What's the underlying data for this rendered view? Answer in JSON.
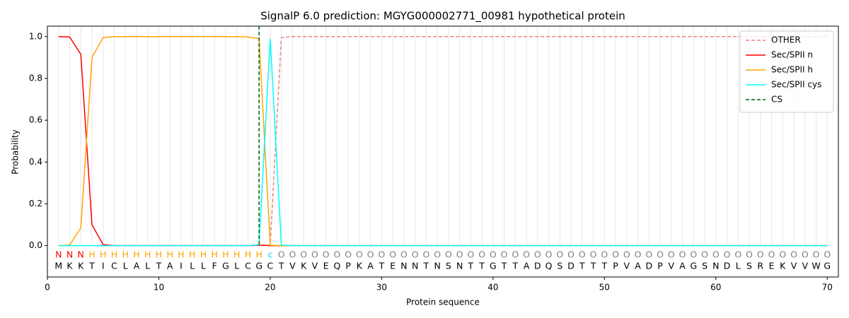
{
  "chart_data": {
    "type": "line",
    "title": "SignalP 6.0 prediction: MGYG000002771_00981 hypothetical protein",
    "x_label": "Protein sequence",
    "y_label": "Probability",
    "xlim": [
      0,
      71
    ],
    "ylim": [
      -0.15,
      1.05
    ],
    "xticks": [
      0,
      10,
      20,
      30,
      40,
      50,
      60,
      70
    ],
    "yticks": [
      {
        "value": 0,
        "label": "0.0"
      },
      {
        "value": 0.2,
        "label": "0.2"
      },
      {
        "value": 0.4,
        "label": "0.4"
      },
      {
        "value": 0.6,
        "label": "0.6"
      },
      {
        "value": 0.8,
        "label": "0.8"
      },
      {
        "value": 1.0,
        "label": "1.0"
      }
    ],
    "legend": "upper right",
    "x": [
      1,
      2,
      3,
      4,
      5,
      6,
      7,
      8,
      9,
      10,
      11,
      12,
      13,
      14,
      15,
      16,
      17,
      18,
      19,
      20,
      21,
      22,
      23,
      24,
      25,
      26,
      27,
      28,
      29,
      30,
      31,
      32,
      33,
      34,
      35,
      36,
      37,
      38,
      39,
      40,
      41,
      42,
      43,
      44,
      45,
      46,
      47,
      48,
      49,
      50,
      51,
      52,
      53,
      54,
      55,
      56,
      57,
      58,
      59,
      60,
      61,
      62,
      63,
      64,
      65,
      66,
      67,
      68,
      69,
      70
    ],
    "sequence": [
      "M",
      "K",
      "K",
      "T",
      "I",
      "C",
      "L",
      "A",
      "L",
      "T",
      "A",
      "I",
      "L",
      "L",
      "F",
      "G",
      "L",
      "C",
      "G",
      "C",
      "T",
      "V",
      "K",
      "V",
      "E",
      "Q",
      "P",
      "K",
      "A",
      "T",
      "E",
      "N",
      "N",
      "T",
      "N",
      "S",
      "N",
      "T",
      "T",
      "G",
      "T",
      "T",
      "A",
      "D",
      "Q",
      "S",
      "D",
      "T",
      "T",
      "T",
      "P",
      "V",
      "A",
      "D",
      "P",
      "V",
      "A",
      "G",
      "S",
      "N",
      "D",
      "L",
      "S",
      "R",
      "E",
      "K",
      "V",
      "V",
      "W",
      "G"
    ],
    "annotation": [
      "N",
      "N",
      "N",
      "H",
      "H",
      "H",
      "H",
      "H",
      "H",
      "H",
      "H",
      "H",
      "H",
      "H",
      "H",
      "H",
      "H",
      "H",
      "H",
      "c",
      "O",
      "O",
      "O",
      "O",
      "O",
      "O",
      "O",
      "O",
      "O",
      "O",
      "O",
      "O",
      "O",
      "O",
      "O",
      "O",
      "O",
      "O",
      "O",
      "O",
      "O",
      "O",
      "O",
      "O",
      "O",
      "O",
      "O",
      "O",
      "O",
      "O",
      "O",
      "O",
      "O",
      "O",
      "O",
      "O",
      "O",
      "O",
      "O",
      "O",
      "O",
      "O",
      "O",
      "O",
      "O",
      "O",
      "O",
      "O",
      "O",
      "O"
    ],
    "annotation_colors": {
      "N": "#ff0000",
      "H": "#ffa500",
      "c": "#00e5ee",
      "O": "#808080"
    },
    "series": [
      {
        "name": "OTHER",
        "color": "#f08080",
        "dash": true,
        "values": [
          0,
          0,
          0,
          0,
          0,
          0,
          0,
          0,
          0,
          0,
          0,
          0,
          0,
          0,
          0,
          0,
          0,
          0,
          0,
          0.002,
          0.995,
          1,
          1,
          1,
          1,
          1,
          1,
          1,
          1,
          1,
          1,
          1,
          1,
          1,
          1,
          1,
          1,
          1,
          1,
          1,
          1,
          1,
          1,
          1,
          1,
          1,
          1,
          1,
          1,
          1,
          1,
          1,
          1,
          1,
          1,
          1,
          1,
          1,
          1,
          1,
          1,
          1,
          1,
          1,
          1,
          1,
          1,
          1,
          1,
          1
        ]
      },
      {
        "name": "Sec/SPII n",
        "color": "#ff0000",
        "values": [
          1.0,
          0.998,
          0.915,
          0.1,
          0.005,
          0,
          0,
          0,
          0,
          0,
          0,
          0,
          0,
          0,
          0,
          0,
          0,
          0,
          0.003,
          0,
          0,
          0,
          0,
          0,
          0,
          0,
          0,
          0,
          0,
          0,
          0,
          0,
          0,
          0,
          0,
          0,
          0,
          0,
          0,
          0,
          0,
          0,
          0,
          0,
          0,
          0,
          0,
          0,
          0,
          0,
          0,
          0,
          0,
          0,
          0,
          0,
          0,
          0,
          0,
          0,
          0,
          0,
          0,
          0,
          0,
          0,
          0,
          0,
          0,
          0
        ]
      },
      {
        "name": "Sec/SPII h",
        "color": "#ffa500",
        "values": [
          0,
          0.003,
          0.085,
          0.9,
          0.995,
          1,
          1,
          1,
          1,
          1,
          1,
          1,
          1,
          1,
          1,
          1,
          1,
          0.998,
          0.99,
          0.002,
          0,
          0,
          0,
          0,
          0,
          0,
          0,
          0,
          0,
          0,
          0,
          0,
          0,
          0,
          0,
          0,
          0,
          0,
          0,
          0,
          0,
          0,
          0,
          0,
          0,
          0,
          0,
          0,
          0,
          0,
          0,
          0,
          0,
          0,
          0,
          0,
          0,
          0,
          0,
          0,
          0,
          0,
          0,
          0,
          0,
          0,
          0,
          0,
          0,
          0
        ]
      },
      {
        "name": "Sec/SPII cys",
        "color": "#00ffff",
        "values": [
          0,
          0,
          0,
          0,
          0,
          0,
          0,
          0,
          0,
          0,
          0,
          0,
          0,
          0,
          0,
          0,
          0,
          0,
          0.005,
          0.99,
          0.003,
          0,
          0,
          0,
          0,
          0,
          0,
          0,
          0,
          0,
          0,
          0,
          0,
          0,
          0,
          0,
          0,
          0,
          0,
          0,
          0,
          0,
          0,
          0,
          0,
          0,
          0,
          0,
          0,
          0,
          0,
          0,
          0,
          0,
          0,
          0,
          0,
          0,
          0,
          0,
          0,
          0,
          0,
          0,
          0,
          0,
          0,
          0,
          0,
          0
        ]
      }
    ],
    "cs": {
      "name": "CS",
      "color": "#006400",
      "x": 19
    }
  }
}
